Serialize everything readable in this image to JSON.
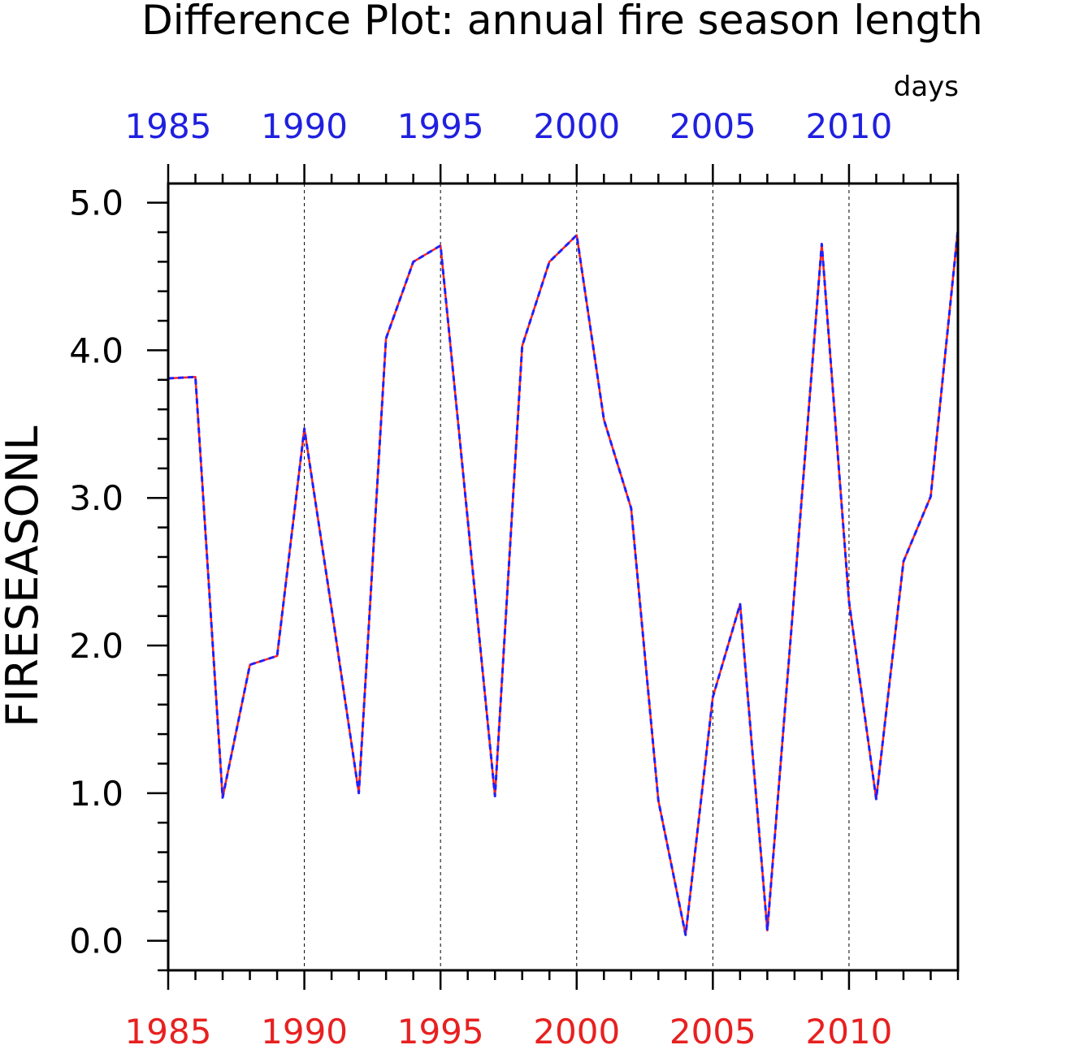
{
  "chart_data": {
    "type": "line",
    "title": "Difference Plot: annual fire season length",
    "units": "days",
    "ylabel": "FIRESEASONL",
    "xlim": [
      1985,
      2014
    ],
    "ylim": [
      -0.2,
      5.13
    ],
    "x_major_ticks": [
      1985,
      1990,
      1995,
      2000,
      2005,
      2010
    ],
    "x_tick_labels": [
      "1985",
      "1990",
      "1995",
      "2000",
      "2005",
      "2010"
    ],
    "y_major_ticks": [
      0,
      1,
      2,
      3,
      4,
      5
    ],
    "y_tick_labels": [
      "0.0",
      "1.0",
      "2.0",
      "3.0",
      "4.0",
      "5.0"
    ],
    "grid": "vertical dashed at major x ticks",
    "top_axis_label_color": "#2020e0",
    "bottom_axis_label_color": "#e82020",
    "x": [
      1985,
      1986,
      1987,
      1988,
      1989,
      1990,
      1991,
      1992,
      1993,
      1994,
      1995,
      1996,
      1997,
      1998,
      1999,
      2000,
      2001,
      2002,
      2003,
      2004,
      2005,
      2006,
      2007,
      2008,
      2009,
      2010,
      2011,
      2012,
      2013,
      2014
    ],
    "series": [
      {
        "color": "#ff2020",
        "style": "solid",
        "values": [
          3.81,
          3.82,
          0.97,
          1.87,
          1.93,
          3.47,
          2.25,
          1.0,
          4.08,
          4.6,
          4.71,
          2.85,
          0.98,
          4.03,
          4.6,
          4.78,
          3.53,
          2.93,
          0.95,
          0.04,
          1.65,
          2.28,
          0.07,
          2.38,
          4.72,
          2.3,
          0.96,
          2.57,
          3.01,
          4.82
        ]
      },
      {
        "color": "#2020ff",
        "style": "dashed",
        "values": [
          3.81,
          3.82,
          0.97,
          1.87,
          1.93,
          3.47,
          2.25,
          1.0,
          4.08,
          4.6,
          4.71,
          2.85,
          0.98,
          4.03,
          4.6,
          4.78,
          3.53,
          2.93,
          0.95,
          0.04,
          1.65,
          2.28,
          0.07,
          2.38,
          4.72,
          2.3,
          0.96,
          2.57,
          3.01,
          4.82
        ]
      }
    ]
  }
}
